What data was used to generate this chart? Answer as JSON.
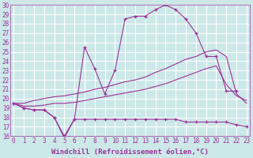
{
  "xlabel": "Windchill (Refroidissement éolien,°C)",
  "line_color": "#993399",
  "bg_color": "#cce8e8",
  "grid_color": "#ffffff",
  "ylim": [
    16,
    30
  ],
  "xlim": [
    -0.3,
    23.3
  ],
  "yticks": [
    16,
    17,
    18,
    19,
    20,
    21,
    22,
    23,
    24,
    25,
    26,
    27,
    28,
    29,
    30
  ],
  "xticks": [
    0,
    1,
    2,
    3,
    4,
    5,
    6,
    7,
    8,
    9,
    10,
    11,
    12,
    13,
    14,
    15,
    16,
    17,
    18,
    19,
    20,
    21,
    22,
    23
  ],
  "curve_upper_x": [
    0,
    1,
    2,
    3,
    4,
    5,
    6,
    7,
    8,
    9,
    10,
    11,
    12,
    13,
    14,
    15,
    16,
    17,
    18,
    19,
    20,
    21,
    22
  ],
  "curve_upper_y": [
    19.5,
    19.0,
    18.8,
    18.8,
    18.0,
    16.0,
    17.8,
    25.5,
    23.2,
    20.5,
    23.0,
    28.5,
    28.8,
    28.8,
    29.5,
    30.0,
    29.5,
    28.5,
    27.0,
    24.5,
    24.5,
    20.8,
    20.8
  ],
  "curve_mid_upper_x": [
    0,
    1,
    2,
    3,
    4,
    5,
    6,
    7,
    8,
    9,
    10,
    11,
    12,
    13,
    14,
    15,
    16,
    17,
    18,
    19,
    20,
    21,
    22,
    23
  ],
  "curve_mid_upper_y": [
    19.5,
    19.5,
    19.8,
    20.0,
    20.2,
    20.3,
    20.5,
    20.7,
    21.0,
    21.2,
    21.5,
    21.8,
    22.0,
    22.3,
    22.8,
    23.2,
    23.7,
    24.2,
    24.5,
    25.0,
    25.2,
    24.5,
    20.5,
    19.5
  ],
  "curve_mid_lower_x": [
    0,
    1,
    2,
    3,
    4,
    5,
    6,
    7,
    8,
    9,
    10,
    11,
    12,
    13,
    14,
    15,
    16,
    17,
    18,
    19,
    20,
    21,
    22,
    23
  ],
  "curve_mid_lower_y": [
    19.5,
    19.2,
    19.2,
    19.3,
    19.5,
    19.5,
    19.6,
    19.8,
    20.0,
    20.2,
    20.4,
    20.6,
    20.8,
    21.0,
    21.3,
    21.6,
    22.0,
    22.4,
    22.8,
    23.2,
    23.5,
    21.5,
    20.3,
    19.8
  ],
  "curve_lower_x": [
    0,
    1,
    2,
    3,
    4,
    5,
    6,
    7,
    8,
    9,
    10,
    11,
    12,
    13,
    14,
    15,
    16,
    17,
    18,
    19,
    20,
    21,
    22,
    23
  ],
  "curve_lower_y": [
    19.5,
    19.0,
    18.8,
    18.8,
    18.0,
    15.8,
    17.8,
    17.8,
    17.8,
    17.8,
    17.8,
    17.8,
    17.8,
    17.8,
    17.8,
    17.8,
    17.8,
    17.5,
    17.5,
    17.5,
    17.5,
    17.5,
    17.2,
    17.0
  ],
  "tick_fontsize": 5.5,
  "label_fontsize": 6.5
}
